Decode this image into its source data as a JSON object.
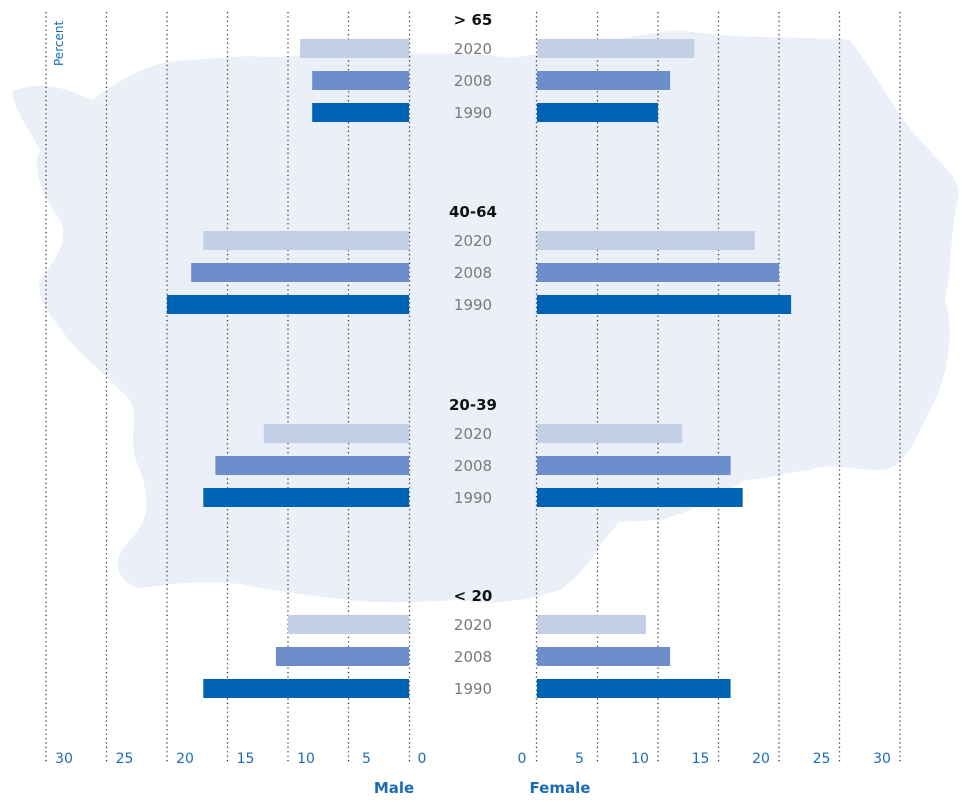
{
  "chart_data": {
    "type": "bar",
    "orientation": "horizontal",
    "layout": "population-pyramid",
    "unit_label": "Percent",
    "sides": [
      "Male",
      "Female"
    ],
    "xlim": [
      0,
      30
    ],
    "ticks_left": [
      "30",
      "25",
      "20",
      "15",
      "10",
      "5",
      "0"
    ],
    "ticks_right": [
      "0",
      "5",
      "10",
      "15",
      "20",
      "25",
      "30"
    ],
    "grid": true,
    "background": "faded map silhouette",
    "colors": {
      "2020": "#c3cfe7",
      "2008": "#6c8ecb",
      "1990": "#0064b5",
      "map": "#ebeff7",
      "accent": "#1a6db5"
    },
    "groups": [
      {
        "label": "> 65",
        "years": [
          "2020",
          "2008",
          "1990"
        ],
        "male": [
          9,
          8,
          8
        ],
        "female": [
          13,
          11,
          10
        ]
      },
      {
        "label": "40-64",
        "years": [
          "2020",
          "2008",
          "1990"
        ],
        "male": [
          17,
          18,
          20
        ],
        "female": [
          18,
          20,
          21
        ]
      },
      {
        "label": "20-39",
        "years": [
          "2020",
          "2008",
          "1990"
        ],
        "male": [
          12,
          16,
          17
        ],
        "female": [
          12,
          16,
          17
        ]
      },
      {
        "label": "< 20",
        "years": [
          "2020",
          "2008",
          "1990"
        ],
        "male": [
          10,
          11,
          17
        ],
        "female": [
          9,
          11,
          16
        ]
      }
    ]
  }
}
